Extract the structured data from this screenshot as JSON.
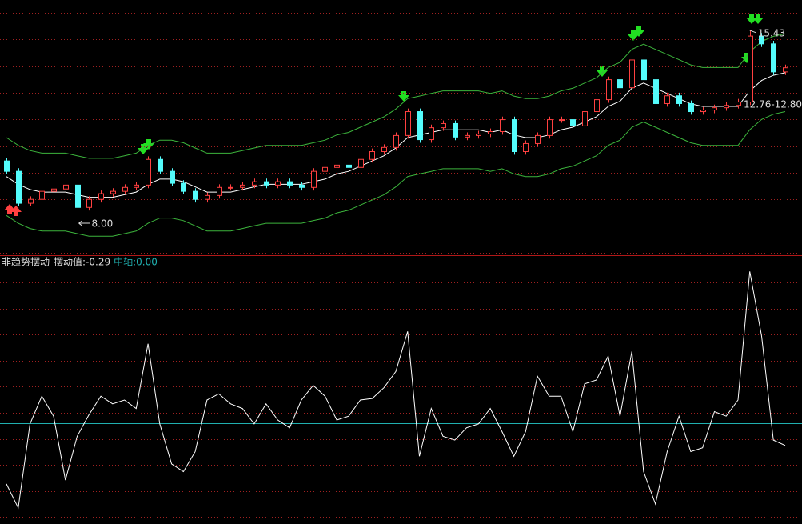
{
  "chart_data": [
    {
      "type": "candlestick",
      "grid": true,
      "ylim": [
        6.8,
        16.6
      ],
      "up_color": "#ff4040",
      "down_color": "#54fcfc",
      "open": [
        10.4,
        10.0,
        8.77,
        8.92,
        9.23,
        9.32,
        9.47,
        8.61,
        8.92,
        9.14,
        9.23,
        9.38,
        9.47,
        10.46,
        10.0,
        9.54,
        9.23,
        8.92,
        9.07,
        9.38,
        9.38,
        9.47,
        9.6,
        9.47,
        9.6,
        9.47,
        9.38,
        10.0,
        10.15,
        10.24,
        10.15,
        10.46,
        10.76,
        10.92,
        11.38,
        12.3,
        11.22,
        11.68,
        11.84,
        11.32,
        11.38,
        11.44,
        11.53,
        11.99,
        10.76,
        11.07,
        11.38,
        11.99,
        11.99,
        11.75,
        12.3,
        12.76,
        13.53,
        13.22,
        14.29,
        13.53,
        12.61,
        12.91,
        12.61,
        12.3,
        12.36,
        12.45,
        12.54,
        12.67,
        15.21,
        14.91,
        13.83
      ],
      "high": [
        10.52,
        10.12,
        9.04,
        9.35,
        9.44,
        9.59,
        9.59,
        9.04,
        9.26,
        9.35,
        9.5,
        9.59,
        10.58,
        10.58,
        10.12,
        9.66,
        9.35,
        9.19,
        9.5,
        9.5,
        9.59,
        9.72,
        9.72,
        9.72,
        9.72,
        9.59,
        10.12,
        10.27,
        10.36,
        10.36,
        10.58,
        10.88,
        11.04,
        11.5,
        12.42,
        12.42,
        11.8,
        11.96,
        11.96,
        11.5,
        11.56,
        11.65,
        12.11,
        12.11,
        11.19,
        11.5,
        12.11,
        12.11,
        12.11,
        12.42,
        12.88,
        13.65,
        13.65,
        14.41,
        14.41,
        13.65,
        13.03,
        13.03,
        12.73,
        12.48,
        12.57,
        12.66,
        12.79,
        15.43,
        15.33,
        15.03,
        14.11
      ],
      "low": [
        9.88,
        8.65,
        8.65,
        8.8,
        9.11,
        9.2,
        8.0,
        8.49,
        8.8,
        9.02,
        9.11,
        9.26,
        9.35,
        9.88,
        9.42,
        9.11,
        8.8,
        8.8,
        8.95,
        9.26,
        9.26,
        9.35,
        9.35,
        9.35,
        9.35,
        9.26,
        9.26,
        9.88,
        10.03,
        10.03,
        10.03,
        10.34,
        10.64,
        10.8,
        11.26,
        11.1,
        11.1,
        11.56,
        11.2,
        11.2,
        11.26,
        11.32,
        11.41,
        10.64,
        10.64,
        10.95,
        11.26,
        11.87,
        11.63,
        11.63,
        12.18,
        12.64,
        13.1,
        13.1,
        13.41,
        12.49,
        12.49,
        12.49,
        12.18,
        12.18,
        12.24,
        12.33,
        12.42,
        12.55,
        14.79,
        13.71,
        13.71
      ],
      "close": [
        10.0,
        8.77,
        8.92,
        9.23,
        9.32,
        9.47,
        8.61,
        8.92,
        9.14,
        9.23,
        9.38,
        9.47,
        10.46,
        10.0,
        9.54,
        9.23,
        8.92,
        9.07,
        9.38,
        9.38,
        9.47,
        9.6,
        9.47,
        9.6,
        9.47,
        9.38,
        10.0,
        10.15,
        10.24,
        10.15,
        10.46,
        10.76,
        10.92,
        11.38,
        12.3,
        11.22,
        11.68,
        11.84,
        11.32,
        11.38,
        11.44,
        11.53,
        11.99,
        10.76,
        11.07,
        11.38,
        11.99,
        11.99,
        11.75,
        12.3,
        12.76,
        13.53,
        13.22,
        14.29,
        13.53,
        12.61,
        12.91,
        12.61,
        12.3,
        12.36,
        12.45,
        12.54,
        12.67,
        15.21,
        14.91,
        13.83,
        13.99
      ],
      "lines": [
        {
          "color": "#3cb43c",
          "values": [
            11.3,
            11.0,
            10.8,
            10.7,
            10.7,
            10.7,
            10.6,
            10.5,
            10.5,
            10.5,
            10.6,
            10.7,
            11.0,
            11.2,
            11.2,
            11.1,
            10.9,
            10.7,
            10.7,
            10.7,
            10.8,
            10.9,
            11.0,
            11.0,
            11.0,
            11.0,
            11.1,
            11.2,
            11.4,
            11.5,
            11.7,
            11.9,
            12.1,
            12.4,
            12.8,
            12.9,
            13.0,
            13.1,
            13.1,
            13.1,
            13.1,
            13.0,
            13.1,
            12.9,
            12.8,
            12.8,
            12.9,
            13.1,
            13.2,
            13.4,
            13.6,
            14.0,
            14.2,
            14.7,
            14.9,
            14.7,
            14.5,
            14.3,
            14.1,
            14.0,
            14.0,
            14.0,
            14.0,
            14.6,
            15.0,
            15.2,
            15.3
          ]
        },
        {
          "color": "#ffffff",
          "values": [
            9.8,
            9.5,
            9.3,
            9.2,
            9.2,
            9.2,
            9.1,
            9.0,
            9.0,
            9.0,
            9.1,
            9.2,
            9.5,
            9.7,
            9.7,
            9.6,
            9.4,
            9.2,
            9.2,
            9.2,
            9.3,
            9.4,
            9.5,
            9.5,
            9.5,
            9.5,
            9.6,
            9.7,
            9.9,
            10.0,
            10.2,
            10.4,
            10.6,
            10.9,
            11.3,
            11.4,
            11.5,
            11.6,
            11.6,
            11.6,
            11.6,
            11.5,
            11.6,
            11.4,
            11.3,
            11.3,
            11.4,
            11.6,
            11.7,
            11.9,
            12.1,
            12.5,
            12.7,
            13.2,
            13.4,
            13.2,
            13.0,
            12.8,
            12.6,
            12.5,
            12.5,
            12.5,
            12.5,
            13.1,
            13.5,
            13.7,
            13.8
          ]
        },
        {
          "color": "#3cb43c",
          "values": [
            8.3,
            8.0,
            7.8,
            7.7,
            7.7,
            7.7,
            7.6,
            7.5,
            7.5,
            7.5,
            7.6,
            7.7,
            8.0,
            8.2,
            8.2,
            8.1,
            7.9,
            7.7,
            7.7,
            7.7,
            7.8,
            7.9,
            8.0,
            8.0,
            8.0,
            8.0,
            8.1,
            8.2,
            8.4,
            8.5,
            8.7,
            8.9,
            9.1,
            9.4,
            9.8,
            9.9,
            10.0,
            10.1,
            10.1,
            10.1,
            10.1,
            10.0,
            10.1,
            9.9,
            9.8,
            9.8,
            9.9,
            10.1,
            10.2,
            10.4,
            10.6,
            11.0,
            11.2,
            11.7,
            11.9,
            11.7,
            11.5,
            11.3,
            11.1,
            11.0,
            11.0,
            11.0,
            11.0,
            11.6,
            12.0,
            12.2,
            12.3
          ]
        }
      ],
      "high_label": "15.43",
      "low_label": "8.00",
      "last_label": "12.76-12.80"
    },
    {
      "type": "line",
      "grid": true,
      "title": "非趋势摆动",
      "ylim": [
        -1.31,
        2.17
      ],
      "series": [
        {
          "name": "摆动值:-0.29",
          "color": "#ffffff",
          "values": [
            -0.79,
            -1.1,
            -0.01,
            0.35,
            0.09,
            -0.74,
            -0.17,
            0.11,
            0.35,
            0.25,
            0.3,
            0.19,
            1.03,
            -0.01,
            -0.53,
            -0.63,
            -0.37,
            0.3,
            0.38,
            0.25,
            0.19,
            -0.01,
            0.25,
            0.04,
            -0.06,
            0.3,
            0.49,
            0.35,
            0.04,
            0.09,
            0.3,
            0.32,
            0.46,
            0.67,
            1.19,
            -0.43,
            0.19,
            -0.17,
            -0.22,
            -0.06,
            -0.01,
            0.19,
            -0.11,
            -0.43,
            -0.11,
            0.61,
            0.35,
            0.35,
            -0.11,
            0.51,
            0.56,
            0.87,
            0.09,
            0.93,
            -0.63,
            -1.05,
            -0.37,
            0.09,
            -0.37,
            -0.32,
            0.15,
            0.09,
            0.3,
            1.97,
            1.13,
            -0.22,
            -0.29
          ]
        }
      ],
      "midline": {
        "label": "中轴:0.00",
        "value": 0,
        "color": "#20b0b0"
      }
    }
  ]
}
